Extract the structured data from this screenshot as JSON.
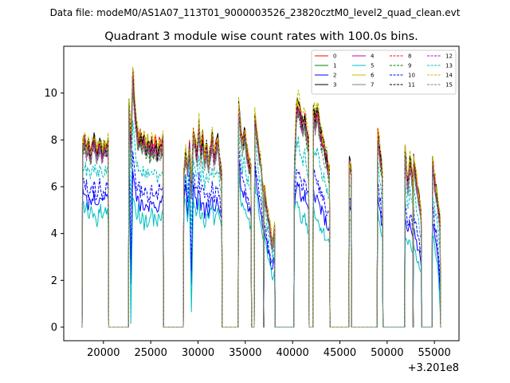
{
  "figure": {
    "suptitle": "Data file: modeM0/AS1A07_113T01_9000003526_23820cztM0_level2_quad_clean.evt"
  },
  "chart_data": {
    "type": "line",
    "title": "Quadrant 3 module wise count rates with 100.0s bins.",
    "xlabel": "",
    "ylabel": "",
    "x_offset_label": "+3.201e8",
    "xlim": [
      15800,
      57600
    ],
    "ylim": [
      -0.58,
      12.0
    ],
    "xticks": [
      20000,
      25000,
      30000,
      35000,
      40000,
      45000,
      50000,
      55000
    ],
    "yticks": [
      0,
      2,
      4,
      6,
      8,
      10
    ],
    "legend_position": "top-right",
    "segments": [
      {
        "start": 17800,
        "end": 20500,
        "high": [
          7.8,
          8.3,
          7.6,
          8.1,
          7.4,
          7.9,
          8.2,
          7.6,
          7.8,
          8.0,
          7.5,
          7.9,
          7.7,
          8.1
        ],
        "low": [
          5.6,
          5.2,
          5.5,
          4.8,
          5.3,
          5.0,
          5.4,
          4.7,
          5.1,
          5.5,
          4.9,
          5.2,
          5.3,
          5.0
        ]
      },
      {
        "start": 22700,
        "end": 26300,
        "high": [
          9.6,
          8.2,
          11.2,
          9.8,
          8.7,
          8.1,
          8.4,
          7.9,
          8.3,
          7.8,
          8.2,
          7.6,
          8.0,
          7.7,
          8.1,
          7.5,
          8.0,
          7.8,
          8.2
        ],
        "low": [
          7.5,
          0.9,
          6.0,
          5.5,
          4.9,
          5.3,
          4.8,
          5.1,
          4.7,
          5.0,
          4.6,
          4.9,
          5.2,
          4.8,
          5.0,
          4.7,
          5.1,
          4.9,
          5.3
        ]
      },
      {
        "start": 28500,
        "end": 32500,
        "high": [
          6.8,
          7.5,
          6.9,
          7.8,
          6.2,
          8.4,
          8.0,
          7.5,
          8.8,
          7.6,
          8.3,
          7.3,
          7.9,
          7.1,
          7.6,
          8.3,
          7.4,
          7.9,
          8.1,
          7.2,
          6.6
        ],
        "low": [
          5.2,
          5.8,
          4.5,
          6.0,
          1.2,
          5.9,
          5.4,
          5.0,
          5.6,
          4.8,
          5.2,
          4.6,
          5.0,
          4.7,
          5.1,
          5.3,
          4.8,
          4.9,
          5.2,
          4.7,
          4.3
        ]
      },
      {
        "start": 34300,
        "end": 35600,
        "high": [
          9.7,
          8.5,
          7.9,
          8.6,
          7.6,
          7.2,
          6.8
        ],
        "low": [
          6.9,
          5.8,
          5.3,
          5.5,
          5.0,
          4.7,
          4.4
        ]
      },
      {
        "start": 36000,
        "end": 36900,
        "high": [
          9.1,
          8.4,
          7.8,
          7.0,
          6.2
        ],
        "low": [
          6.5,
          5.8,
          5.2,
          4.6,
          4.1
        ]
      },
      {
        "start": 37000,
        "end": 38100,
        "high": [
          6.0,
          5.4,
          4.8,
          4.2,
          3.6,
          4.3
        ],
        "low": [
          4.0,
          3.5,
          3.0,
          2.6,
          2.2,
          2.8
        ]
      },
      {
        "start": 40200,
        "end": 41700,
        "high": [
          7.0,
          9.6,
          9.8,
          9.3,
          8.8,
          9.2,
          8.6,
          8.1
        ],
        "low": [
          5.0,
          5.8,
          5.6,
          5.2,
          4.9,
          5.3,
          4.7,
          4.5
        ]
      },
      {
        "start": 42200,
        "end": 43900,
        "high": [
          9.5,
          9.0,
          9.6,
          8.8,
          8.3,
          8.0,
          7.6,
          7.2,
          6.8
        ],
        "low": [
          5.6,
          5.2,
          5.0,
          4.8,
          4.6,
          4.4,
          4.2,
          4.0,
          3.9
        ]
      },
      {
        "start": 46000,
        "end": 46200,
        "high": [
          7.1,
          6.8
        ],
        "low": [
          5.0,
          4.8
        ]
      },
      {
        "start": 49000,
        "end": 49500,
        "high": [
          8.4,
          7.6,
          6.6
        ],
        "low": [
          5.2,
          4.6,
          4.0
        ]
      },
      {
        "start": 51900,
        "end": 52700,
        "high": [
          7.8,
          6.2,
          7.4,
          6.4
        ],
        "low": [
          4.2,
          3.6,
          4.0,
          3.5
        ]
      },
      {
        "start": 52800,
        "end": 53600,
        "high": [
          7.4,
          6.5,
          5.8,
          5.0
        ],
        "low": [
          4.0,
          3.4,
          3.0,
          2.4
        ]
      },
      {
        "start": 54800,
        "end": 55600,
        "high": [
          7.3,
          6.3,
          5.6,
          4.6
        ],
        "low": [
          4.2,
          3.6,
          2.8,
          1.2
        ]
      }
    ],
    "series": [
      {
        "name": "0",
        "color": "#ff0000",
        "linestyle": "solid",
        "level": 0.96
      },
      {
        "name": "1",
        "color": "#008000",
        "linestyle": "solid",
        "level": 0.92
      },
      {
        "name": "2",
        "color": "#0000ff",
        "linestyle": "solid",
        "level": 0.1
      },
      {
        "name": "3",
        "color": "#000000",
        "linestyle": "solid",
        "level": 0.97
      },
      {
        "name": "4",
        "color": "#bf00bf",
        "linestyle": "solid",
        "level": 0.9
      },
      {
        "name": "5",
        "color": "#00bfbf",
        "linestyle": "solid",
        "level": -0.1
      },
      {
        "name": "6",
        "color": "#bfbf00",
        "linestyle": "solid",
        "level": 0.95
      },
      {
        "name": "7",
        "color": "#808080",
        "linestyle": "solid",
        "level": 0.86
      },
      {
        "name": "8",
        "color": "#ff0000",
        "linestyle": "dashed",
        "level": 0.93
      },
      {
        "name": "9",
        "color": "#008000",
        "linestyle": "dashed",
        "level": 0.84
      },
      {
        "name": "10",
        "color": "#0000ff",
        "linestyle": "dashed",
        "level": 0.28
      },
      {
        "name": "11",
        "color": "#000000",
        "linestyle": "dashed",
        "level": 0.94
      },
      {
        "name": "12",
        "color": "#bf00bf",
        "linestyle": "dashed",
        "level": 0.88
      },
      {
        "name": "13",
        "color": "#00bfbf",
        "linestyle": "dashed",
        "level": 0.55
      },
      {
        "name": "14",
        "color": "#bfbf00",
        "linestyle": "dashed",
        "level": 1.03
      },
      {
        "name": "15",
        "color": "#808080",
        "linestyle": "dashed",
        "level": 0.82
      }
    ]
  }
}
